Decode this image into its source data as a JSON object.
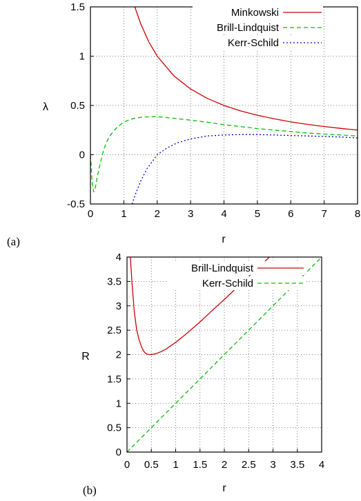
{
  "chart_data": [
    {
      "type": "line",
      "panel_label": "(a)",
      "xlabel": "r",
      "ylabel": "λ",
      "xlim": [
        0,
        8
      ],
      "ylim": [
        -0.5,
        1.5
      ],
      "xticks": [
        "0",
        "1",
        "2",
        "3",
        "4",
        "5",
        "6",
        "7",
        "8"
      ],
      "yticks": [
        "-0.5",
        "0",
        "0.5",
        "1",
        "1.5"
      ],
      "grid": true,
      "legend_position": "top-right",
      "series": [
        {
          "name": "Minkowski",
          "color": "#cc0000",
          "dash": "",
          "x": [
            1.33,
            1.5,
            1.75,
            2,
            2.5,
            3,
            3.5,
            4,
            4.5,
            5,
            5.5,
            6,
            6.5,
            7,
            7.5,
            8
          ],
          "y": [
            1.5,
            1.333,
            1.143,
            1.0,
            0.8,
            0.667,
            0.571,
            0.5,
            0.444,
            0.4,
            0.364,
            0.333,
            0.308,
            0.286,
            0.267,
            0.25
          ]
        },
        {
          "name": "Brill-Lindquist",
          "color": "#00c000",
          "dash": "6,4",
          "x": [
            0,
            0.02,
            0.05,
            0.1,
            0.15,
            0.2,
            0.3,
            0.4,
            0.5,
            0.6,
            0.8,
            1.0,
            1.2,
            1.5,
            1.8,
            2.0,
            2.5,
            3,
            3.5,
            4,
            4.5,
            5,
            5.5,
            6,
            6.5,
            7,
            7.5,
            8
          ],
          "y": [
            0,
            -0.1,
            -0.28,
            -0.38,
            -0.33,
            -0.23,
            -0.08,
            0.05,
            0.14,
            0.2,
            0.28,
            0.33,
            0.36,
            0.38,
            0.385,
            0.385,
            0.37,
            0.35,
            0.33,
            0.305,
            0.285,
            0.265,
            0.25,
            0.235,
            0.22,
            0.21,
            0.2,
            0.19
          ]
        },
        {
          "name": "Kerr-Schild",
          "color": "#0000cc",
          "dash": "2,3",
          "x": [
            1.25,
            1.35,
            1.5,
            1.7,
            2.0,
            2.3,
            2.6,
            3,
            3.5,
            4,
            4.5,
            5,
            5.5,
            6,
            6.5,
            7,
            7.5,
            8
          ],
          "y": [
            -0.5,
            -0.4,
            -0.27,
            -0.14,
            0.0,
            0.07,
            0.12,
            0.16,
            0.19,
            0.2,
            0.205,
            0.205,
            0.2,
            0.195,
            0.19,
            0.185,
            0.18,
            0.17
          ]
        }
      ]
    },
    {
      "type": "line",
      "panel_label": "(b)",
      "xlabel": "r",
      "ylabel": "R",
      "xlim": [
        0,
        4
      ],
      "ylim": [
        0,
        4
      ],
      "xticks": [
        "0",
        "0.5",
        "1",
        "1.5",
        "2",
        "2.5",
        "3",
        "3.5",
        "4"
      ],
      "yticks": [
        "0",
        "0.5",
        "1",
        "1.5",
        "2",
        "2.5",
        "3",
        "3.5",
        "4"
      ],
      "grid": true,
      "legend_position": "top-right",
      "series": [
        {
          "name": "Brill-Lindquist",
          "color": "#cc0000",
          "dash": "",
          "x": [
            0.07,
            0.1,
            0.15,
            0.2,
            0.25,
            0.3,
            0.35,
            0.4,
            0.45,
            0.5,
            0.6,
            0.7,
            0.8,
            1.0,
            1.2,
            1.5,
            1.8,
            2.0,
            2.2,
            2.5,
            2.8,
            3.0,
            3.2
          ],
          "y": [
            4.0,
            3.5,
            2.87,
            2.5,
            2.3,
            2.15,
            2.06,
            2.01,
            2.0,
            2.0,
            2.02,
            2.06,
            2.11,
            2.25,
            2.41,
            2.67,
            2.95,
            3.13,
            3.32,
            3.6,
            3.88,
            4.07,
            4.26
          ]
        },
        {
          "name": "Kerr-Schild",
          "color": "#00c000",
          "dash": "6,4",
          "x": [
            0,
            4
          ],
          "y": [
            0,
            4
          ]
        }
      ]
    }
  ]
}
